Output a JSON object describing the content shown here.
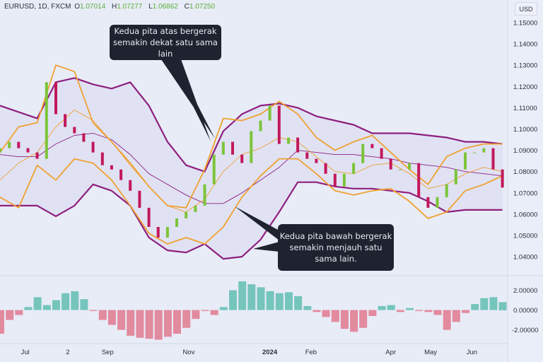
{
  "header": {
    "symbol": "EURUSD, 1D, FXCM",
    "open_label": "O",
    "open": "1.07014",
    "high_label": "H",
    "high": "1.07277",
    "low_label": "L",
    "low": "1.06862",
    "close_label": "C",
    "close": "1.07250",
    "currency": "USD"
  },
  "annotations": {
    "upper": [
      "Kedua pita atas bergerak",
      "semakin dekat satu sama lain"
    ],
    "lower": [
      "Kedua pita bawah bergerak",
      "semakin menjauh satu sama lain."
    ]
  },
  "colors": {
    "background": "#e8ecf7",
    "up_candle": "#7cc43a",
    "down_candle": "#c2185b",
    "outer_band": "#8e1f7e",
    "inner_band": "#f0a030",
    "osc_up": "#4fb8a8",
    "osc_down": "#e06a80",
    "callout": "#1f2330"
  },
  "chart_data": [
    {
      "type": "candlestick",
      "title": "",
      "ylim": [
        1.03,
        1.155
      ],
      "y_ticks": [
        "1.15000",
        "1.14000",
        "1.13000",
        "1.12000",
        "1.11000",
        "1.10000",
        "1.09000",
        "1.08000",
        "1.07000",
        "1.06000",
        "1.05000",
        "1.04000"
      ],
      "x_ticks": [
        {
          "label": "Jul",
          "date": "2023-07-01"
        },
        {
          "label": "2",
          "date": "2023-08-02"
        },
        {
          "label": "Sep",
          "date": "2023-09-01"
        },
        {
          "label": "Nov",
          "date": "2023-11-01"
        },
        {
          "label": "2024",
          "date": "2024-01-01"
        },
        {
          "label": "Feb",
          "date": "2024-02-01"
        },
        {
          "label": "Apr",
          "date": "2024-04-01"
        },
        {
          "label": "May",
          "date": "2024-05-01"
        },
        {
          "label": "Jun",
          "date": "2024-06-01"
        }
      ],
      "dates": [
        "2023-06-12",
        "2023-06-19",
        "2023-06-26",
        "2023-07-03",
        "2023-07-10",
        "2023-07-17",
        "2023-07-24",
        "2023-07-31",
        "2023-08-07",
        "2023-08-14",
        "2023-08-21",
        "2023-08-28",
        "2023-09-04",
        "2023-09-11",
        "2023-09-18",
        "2023-09-25",
        "2023-10-02",
        "2023-10-09",
        "2023-10-16",
        "2023-10-23",
        "2023-10-30",
        "2023-11-06",
        "2023-11-13",
        "2023-11-20",
        "2023-11-27",
        "2023-12-04",
        "2023-12-11",
        "2023-12-18",
        "2023-12-25",
        "2024-01-01",
        "2024-01-08",
        "2024-01-15",
        "2024-01-22",
        "2024-01-29",
        "2024-02-05",
        "2024-02-12",
        "2024-02-19",
        "2024-02-26",
        "2024-03-04",
        "2024-03-11",
        "2024-03-18",
        "2024-03-25",
        "2024-04-01",
        "2024-04-08",
        "2024-04-15",
        "2024-04-22",
        "2024-04-29",
        "2024-05-06",
        "2024-05-13",
        "2024-05-20",
        "2024-05-27",
        "2024-06-03",
        "2024-06-10",
        "2024-06-17",
        "2024-06-24"
      ],
      "close": [
        1.091,
        1.094,
        1.091,
        1.089,
        1.086,
        1.122,
        1.107,
        1.101,
        1.098,
        1.094,
        1.089,
        1.083,
        1.081,
        1.076,
        1.071,
        1.063,
        1.054,
        1.049,
        1.054,
        1.058,
        1.061,
        1.064,
        1.074,
        1.088,
        1.094,
        1.088,
        1.084,
        1.099,
        1.104,
        1.111,
        1.093,
        1.096,
        1.089,
        1.086,
        1.084,
        1.079,
        1.073,
        1.079,
        1.084,
        1.093,
        1.091,
        1.086,
        1.081,
        1.081,
        1.084,
        1.068,
        1.063,
        1.068,
        1.074,
        1.081,
        1.089,
        1.089,
        1.091,
        1.081,
        1.0725
      ],
      "bands_every_other_date": {
        "outer_upper": [
          1.111,
          1.108,
          1.105,
          1.122,
          1.124,
          1.121,
          1.119,
          1.122,
          1.111,
          1.094,
          1.083,
          1.08,
          1.099,
          1.107,
          1.111,
          1.112,
          1.11,
          1.106,
          1.104,
          1.102,
          1.098,
          1.098,
          1.098,
          1.097,
          1.096,
          1.094,
          1.094,
          1.093
        ],
        "outer_lower": [
          1.064,
          1.064,
          1.064,
          1.059,
          1.064,
          1.074,
          1.071,
          1.064,
          1.049,
          1.043,
          1.042,
          1.046,
          1.039,
          1.04,
          1.048,
          1.061,
          1.075,
          1.075,
          1.073,
          1.072,
          1.072,
          1.071,
          1.07,
          1.066,
          1.061,
          1.062,
          1.062,
          1.062
        ],
        "outer_middle": [
          1.088,
          1.087,
          1.087,
          1.093,
          1.097,
          1.098,
          1.095,
          1.088,
          1.079,
          1.074,
          1.069,
          1.065,
          1.065,
          1.07,
          1.076,
          1.082,
          1.09,
          1.089,
          1.088,
          1.088,
          1.087,
          1.086,
          1.084,
          1.083,
          1.082,
          1.08,
          1.079,
          1.078
        ],
        "inner_upper": [
          1.089,
          1.101,
          1.103,
          1.13,
          1.127,
          1.103,
          1.094,
          1.084,
          1.073,
          1.064,
          1.063,
          1.081,
          1.105,
          1.104,
          1.107,
          1.113,
          1.107,
          1.096,
          1.09,
          1.094,
          1.097,
          1.089,
          1.081,
          1.074,
          1.087,
          1.091,
          1.093,
          1.093
        ],
        "inner_lower": [
          1.068,
          1.063,
          1.083,
          1.076,
          1.086,
          1.084,
          1.076,
          1.064,
          1.051,
          1.046,
          1.049,
          1.046,
          1.054,
          1.068,
          1.078,
          1.086,
          1.086,
          1.079,
          1.071,
          1.069,
          1.071,
          1.072,
          1.066,
          1.058,
          1.061,
          1.071,
          1.074,
          1.078
        ],
        "inner_middle": [
          1.076,
          1.084,
          1.089,
          1.101,
          1.109,
          1.104,
          1.094,
          1.083,
          1.073,
          1.064,
          1.061,
          1.067,
          1.08,
          1.088,
          1.091,
          1.096,
          1.094,
          1.087,
          1.08,
          1.079,
          1.083,
          1.084,
          1.079,
          1.072,
          1.074,
          1.079,
          1.082,
          1.08
        ]
      }
    },
    {
      "type": "histogram",
      "title": "",
      "ylim": [
        -3.5,
        3.5
      ],
      "y_ticks": [
        "2.00000",
        "0.00000",
        "-2.00000"
      ],
      "values": [
        -2.4,
        -1.0,
        -0.5,
        0.3,
        1.3,
        0.5,
        1.0,
        1.7,
        1.9,
        1.1,
        -0.1,
        -1.0,
        -1.5,
        -2.0,
        -2.6,
        -2.8,
        -2.9,
        -3.0,
        -2.7,
        -2.4,
        -1.8,
        -0.9,
        -0.1,
        -0.5,
        0.3,
        2.0,
        2.9,
        2.6,
        2.3,
        1.9,
        1.7,
        1.8,
        1.4,
        0.4,
        -0.2,
        -0.7,
        -1.2,
        -1.9,
        -2.2,
        -1.8,
        -0.6,
        0.4,
        0.5,
        -0.2,
        0.2,
        -0.1,
        -0.2,
        -0.5,
        -2.0,
        -1.2,
        -0.3,
        0.6,
        1.2,
        1.3,
        0.8
      ]
    }
  ]
}
